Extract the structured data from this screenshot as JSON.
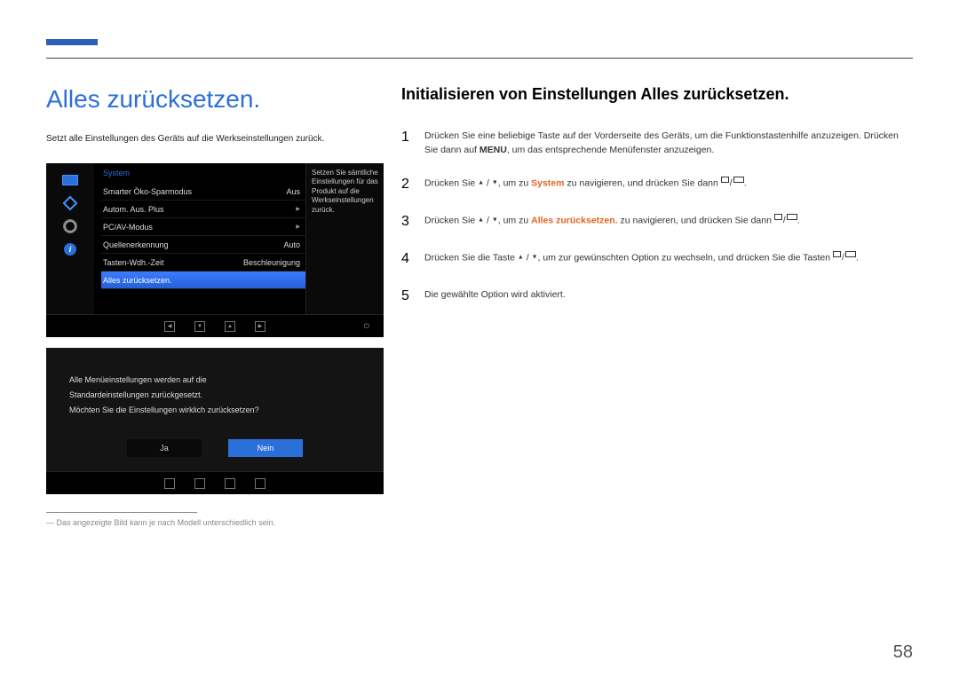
{
  "page": {
    "title": "Alles zurücksetzen.",
    "intro": "Setzt alle Einstellungen des Geräts auf die Werkseinstellungen zurück.",
    "footnote": "Das angezeigte Bild kann je nach Modell unterschiedlich sein.",
    "number": "58"
  },
  "right": {
    "title": "Initialisieren von Einstellungen Alles zurücksetzen.",
    "steps": {
      "s1a": "Drücken Sie eine beliebige Taste auf der Vorderseite des Geräts, um die Funktionstastenhilfe anzuzeigen. Drücken Sie dann auf ",
      "s1b": "MENU",
      "s1c": ", um das entsprechende Menüfenster anzuzeigen.",
      "s2a": "Drücken Sie ",
      "s2b": ", um zu ",
      "s2sys": "System",
      "s2c": " zu navigieren, und drücken Sie dann ",
      "s3a": "Drücken Sie ",
      "s3b": ", um zu ",
      "s3reset": "Alles zurücksetzen.",
      "s3c": " zu navigieren, und drücken Sie dann ",
      "s4a": "Drücken Sie die Taste ",
      "s4b": ", um zur gewünschten Option zu wechseln, und drücken Sie die Tasten ",
      "s5": "Die gewählte Option wird aktiviert."
    }
  },
  "osd": {
    "category": "System",
    "desc": "Setzen Sie sämtliche Einstellungen für das Produkt auf die Werkseinstellungen zurück.",
    "rows": {
      "r1l": "Smarter Öko-Sparmodus",
      "r1v": "Aus",
      "r2l": "Autom. Aus. Plus",
      "r3l": "PC/AV-Modus",
      "r4l": "Quellenerkennung",
      "r4v": "Auto",
      "r5l": "Tasten-Wdh.-Zeit",
      "r5v": "Beschleunigung",
      "r6l": "Alles zurücksetzen."
    },
    "sidebar_info": "i"
  },
  "dialog": {
    "line1": "Alle Menüeinstellungen werden auf die",
    "line2": "Standardeinstellungen zurückgesetzt.",
    "line3": "Möchten Sie die Einstellungen wirklich zurücksetzen?",
    "yes": "Ja",
    "no": "Nein"
  }
}
